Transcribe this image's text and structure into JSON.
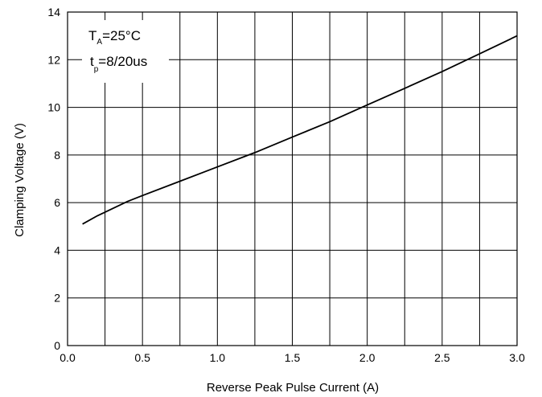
{
  "chart_data": {
    "type": "line",
    "title": "",
    "xlabel": "Reverse Peak Pulse Current (A)",
    "ylabel": "Clamping Voltage (V)",
    "xlim": [
      0.0,
      3.0
    ],
    "ylim": [
      0,
      14
    ],
    "x_ticks": [
      "0.0",
      "0.5",
      "1.0",
      "1.5",
      "2.0",
      "2.5",
      "3.0"
    ],
    "x_tick_values": [
      0.0,
      0.5,
      1.0,
      1.5,
      2.0,
      2.5,
      3.0
    ],
    "x_minor_grid": [
      0.25,
      0.75,
      1.25,
      1.75,
      2.25,
      2.75
    ],
    "y_ticks": [
      "0",
      "2",
      "4",
      "6",
      "8",
      "10",
      "12",
      "14"
    ],
    "y_tick_values": [
      0,
      2,
      4,
      6,
      8,
      10,
      12,
      14
    ],
    "grid": true,
    "annotation": {
      "line1_main": "T",
      "line1_sub": "A",
      "line1_rest": "=25°C",
      "line2_main": "t",
      "line2_sub": "p",
      "line2_rest": "=8/20us"
    },
    "series": [
      {
        "color": "#000000",
        "x": [
          0.1,
          0.2,
          0.3,
          0.4,
          0.5,
          0.75,
          1.0,
          1.25,
          1.5,
          1.75,
          2.0,
          2.25,
          2.5,
          2.75,
          3.0
        ],
        "y": [
          5.1,
          5.45,
          5.75,
          6.05,
          6.3,
          6.9,
          7.5,
          8.1,
          8.75,
          9.4,
          10.1,
          10.8,
          11.5,
          12.25,
          13.0
        ]
      }
    ]
  }
}
